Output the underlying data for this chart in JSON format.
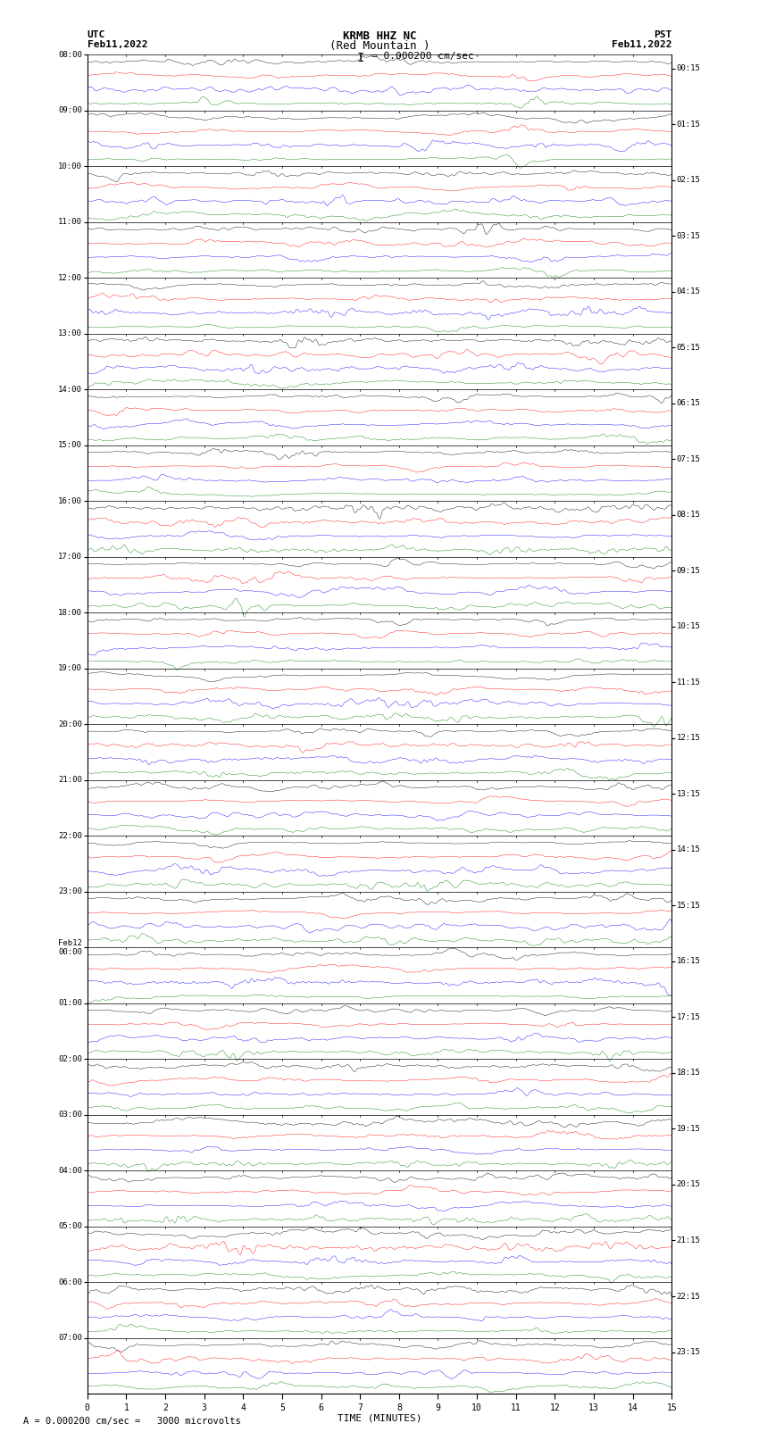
{
  "title_line1": "KRMB HHZ NC",
  "title_line2": "(Red Mountain )",
  "scale_text": "= 0.000200 cm/sec",
  "left_tz": "UTC",
  "left_date": "Feb11,2022",
  "right_tz": "PST",
  "right_date": "Feb11,2022",
  "bottom_label": "TIME (MINUTES)",
  "bottom_note": "A = 0.000200 cm/sec =   3000 microvolts",
  "minutes_per_row": 15,
  "colors": [
    "black",
    "red",
    "blue",
    "green"
  ],
  "fig_width": 8.5,
  "fig_height": 16.13,
  "left_label_times_utc": [
    "08:00",
    "09:00",
    "10:00",
    "11:00",
    "12:00",
    "13:00",
    "14:00",
    "15:00",
    "16:00",
    "17:00",
    "18:00",
    "19:00",
    "20:00",
    "21:00",
    "22:00",
    "23:00",
    "Feb12\n00:00",
    "01:00",
    "02:00",
    "03:00",
    "04:00",
    "05:00",
    "06:00",
    "07:00"
  ],
  "right_label_times_pst": [
    "00:15",
    "01:15",
    "02:15",
    "03:15",
    "04:15",
    "05:15",
    "06:15",
    "07:15",
    "08:15",
    "09:15",
    "10:15",
    "11:15",
    "12:15",
    "13:15",
    "14:15",
    "15:15",
    "16:15",
    "17:15",
    "18:15",
    "19:15",
    "20:15",
    "21:15",
    "22:15",
    "23:15"
  ],
  "x_ticks": [
    0,
    1,
    2,
    3,
    4,
    5,
    6,
    7,
    8,
    9,
    10,
    11,
    12,
    13,
    14,
    15
  ],
  "num_hour_blocks": 24,
  "traces_per_block": 4,
  "samples_per_trace": 1800,
  "amplitude_scale": 0.38,
  "line_width": 0.3,
  "dpi": 100
}
